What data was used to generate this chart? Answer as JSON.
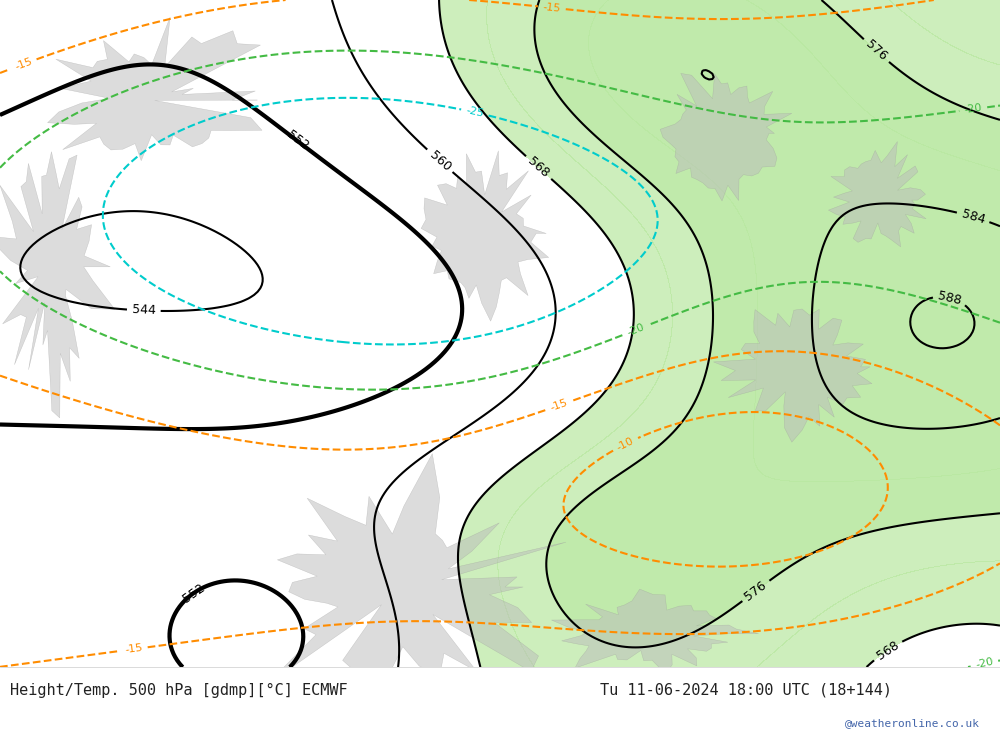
{
  "title_left": "Height/Temp. 500 hPa [gdmp][°C] ECMWF",
  "title_right": "Tu 11-06-2024 18:00 UTC (18+144)",
  "watermark": "@weatheronline.co.uk",
  "bg_color": "#e8e8e8",
  "green_color": "#b8e8a0",
  "map_border_color": "#888888",
  "contour_black_color": "#000000",
  "contour_orange_color": "#ff8c00",
  "contour_cyan_color": "#00cccc",
  "contour_green_color": "#44bb44",
  "title_color": "#222222",
  "watermark_color": "#4466aa",
  "figsize": [
    10.0,
    7.33
  ],
  "dpi": 100
}
